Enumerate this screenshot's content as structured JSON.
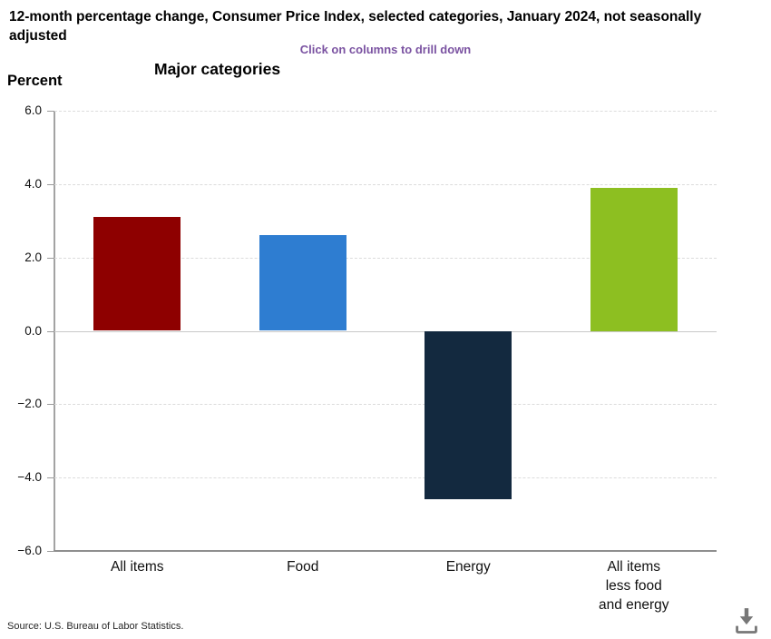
{
  "header": {
    "title": "12-month percentage change, Consumer Price Index, selected categories, January 2024, not seasonally adjusted",
    "drill_hint": "Click on columns to drill down"
  },
  "chart_data": {
    "type": "bar",
    "title": "Major categories",
    "ylabel": "Percent",
    "xlabel": "",
    "categories": [
      "All items",
      "Food",
      "Energy",
      "All items less food and energy"
    ],
    "category_lines": [
      [
        "All items"
      ],
      [
        "Food"
      ],
      [
        "Energy"
      ],
      [
        "All items",
        "less food",
        "and energy"
      ]
    ],
    "values": [
      3.1,
      2.6,
      -4.6,
      3.9
    ],
    "bar_colors": [
      "#8e0000",
      "#2e7dd1",
      "#13293f",
      "#8dbf21"
    ],
    "ylim": [
      -6.0,
      6.0
    ],
    "ytick_values": [
      6,
      4,
      2,
      0,
      -2,
      -4,
      -6
    ],
    "ytick_labels": [
      "6.0",
      "4.0",
      "2.0",
      "0.0",
      "−2.0",
      "−4.0",
      "−6.0"
    ],
    "grid": "horizontal-dashed",
    "legend": "none"
  },
  "footer": {
    "source": "Source: U.S. Bureau of Labor Statistics."
  },
  "icons": {
    "download": "download-tray-arrow"
  },
  "colors": {
    "hint_text": "#7a52a1",
    "title_text": "#000000",
    "axis_line": "#9b9b9b",
    "gridline": "#dcdcdc",
    "zero_line": "#c9c9c9",
    "tick_text": "#111111",
    "source_text": "#262626",
    "download_icon": "#777777",
    "background": "#ffffff"
  }
}
